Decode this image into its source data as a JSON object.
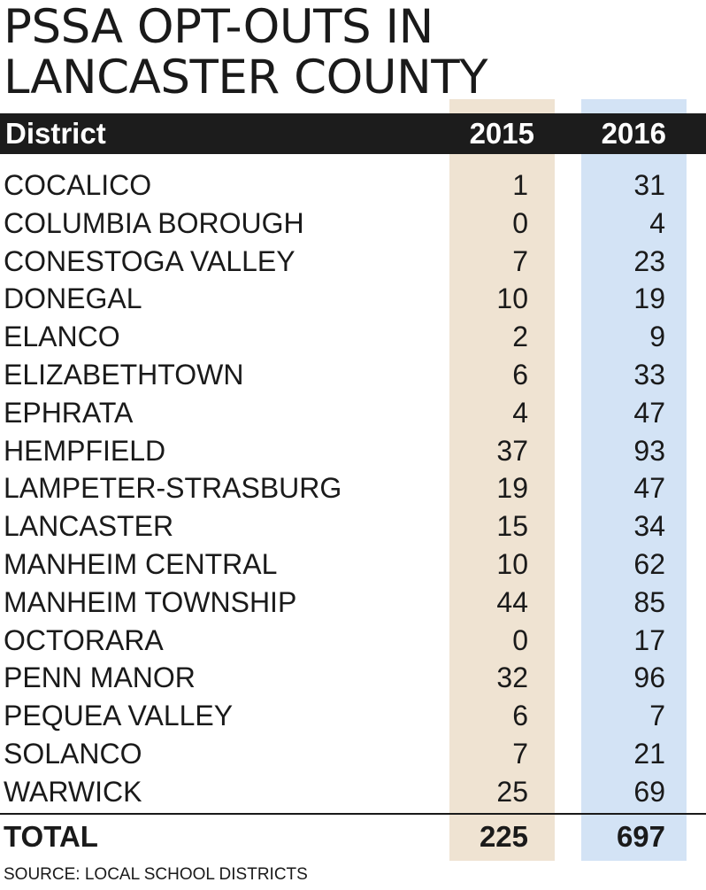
{
  "title_lines": [
    "PSSA OPT-OUTS IN",
    "LANCASTER COUNTY"
  ],
  "colors": {
    "header_bg": "#1c1c1c",
    "col_2015_bg": "#efe3d2",
    "col_2016_bg": "#d3e3f5"
  },
  "chart_data": {
    "type": "table",
    "title": "PSSA OPT-OUTS IN LANCASTER COUNTY",
    "columns": [
      "District",
      "2015",
      "2016"
    ],
    "rows": [
      {
        "district": "COCALICO",
        "y2015": 1,
        "y2016": 31
      },
      {
        "district": "COLUMBIA BOROUGH",
        "y2015": 0,
        "y2016": 4
      },
      {
        "district": "CONESTOGA VALLEY",
        "y2015": 7,
        "y2016": 23
      },
      {
        "district": "DONEGAL",
        "y2015": 10,
        "y2016": 19
      },
      {
        "district": "ELANCO",
        "y2015": 2,
        "y2016": 9
      },
      {
        "district": "ELIZABETHTOWN",
        "y2015": 6,
        "y2016": 33
      },
      {
        "district": "EPHRATA",
        "y2015": 4,
        "y2016": 47
      },
      {
        "district": "HEMPFIELD",
        "y2015": 37,
        "y2016": 93
      },
      {
        "district": "LAMPETER-STRASBURG",
        "y2015": 19,
        "y2016": 47
      },
      {
        "district": "LANCASTER",
        "y2015": 15,
        "y2016": 34
      },
      {
        "district": "MANHEIM CENTRAL",
        "y2015": 10,
        "y2016": 62
      },
      {
        "district": "MANHEIM TOWNSHIP",
        "y2015": 44,
        "y2016": 85
      },
      {
        "district": "OCTORARA",
        "y2015": 0,
        "y2016": 17
      },
      {
        "district": "PENN MANOR",
        "y2015": 32,
        "y2016": 96
      },
      {
        "district": "PEQUEA VALLEY",
        "y2015": 6,
        "y2016": 7
      },
      {
        "district": "SOLANCO",
        "y2015": 7,
        "y2016": 21
      },
      {
        "district": "WARWICK",
        "y2015": 25,
        "y2016": 69
      }
    ],
    "total": {
      "label": "TOTAL",
      "y2015": 225,
      "y2016": 697
    },
    "source": "SOURCE: LOCAL SCHOOL DISTRICTS"
  }
}
